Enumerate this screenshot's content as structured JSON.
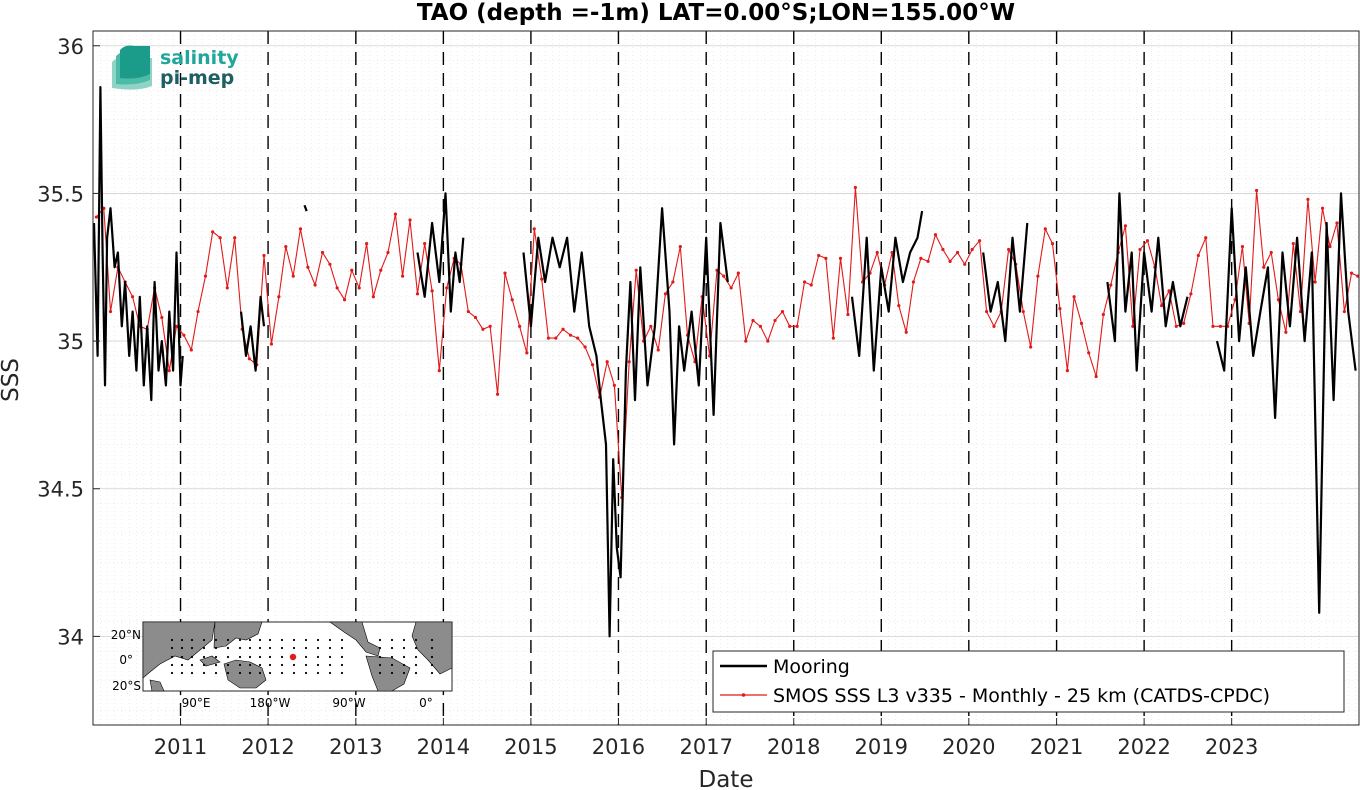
{
  "chart_data": {
    "type": "line",
    "title": "TAO (depth =-1m) LAT=0.00°S;LON=155.00°W",
    "xlabel": "Date",
    "ylabel": "SSS",
    "xlim": [
      "2010-01-01",
      "2024-06-15"
    ],
    "ylim": [
      33.7,
      36.05
    ],
    "y_ticks": [
      "34",
      "34.5",
      "35",
      "35.5",
      "36"
    ],
    "x_ticks": [
      "2011",
      "2012",
      "2013",
      "2014",
      "2015",
      "2016",
      "2017",
      "2018",
      "2019",
      "2020",
      "2021",
      "2022",
      "2023"
    ],
    "grid": true,
    "legend_position": "bottom-right",
    "legend": [
      "Mooring",
      "SMOS SSS L3 v335 - Monthly - 25 km (CATDS-CPDC)"
    ],
    "series": [
      {
        "name": "Mooring",
        "color": "#000000",
        "segments": [
          {
            "x": [
              "2010-01-05",
              "2010-01-20",
              "2010-02-01",
              "2010-02-10",
              "2010-02-20",
              "2010-03-01",
              "2010-03-15",
              "2010-04-01",
              "2010-04-15",
              "2010-05-01",
              "2010-05-15",
              "2010-06-01",
              "2010-06-15",
              "2010-07-01",
              "2010-07-15",
              "2010-08-01",
              "2010-08-15",
              "2010-09-01",
              "2010-09-15",
              "2010-10-01",
              "2010-10-15",
              "2010-11-01",
              "2010-11-15",
              "2010-12-01",
              "2010-12-15",
              "2011-01-01",
              "2011-01-10"
            ],
            "y": [
              35.4,
              34.95,
              35.86,
              35.3,
              34.85,
              35.35,
              35.45,
              35.25,
              35.3,
              35.05,
              35.2,
              34.95,
              35.1,
              34.9,
              35.15,
              34.85,
              35.05,
              34.8,
              35.2,
              34.9,
              35.0,
              34.85,
              35.1,
              34.9,
              35.3,
              34.85,
              34.95
            ]
          },
          {
            "x": [
              "2011-09-10",
              "2011-10-01",
              "2011-10-20",
              "2011-11-10",
              "2011-12-01",
              "2011-12-15"
            ],
            "y": [
              35.1,
              34.95,
              35.05,
              34.9,
              35.15,
              35.05
            ]
          },
          {
            "x": [
              "2012-06-01",
              "2012-06-10"
            ],
            "y": [
              35.46,
              35.44
            ]
          },
          {
            "x": [
              "2013-09-15",
              "2013-10-15",
              "2013-11-15",
              "2013-12-15",
              "2014-01-10",
              "2014-02-01",
              "2014-02-20",
              "2014-03-10",
              "2014-03-25"
            ],
            "y": [
              35.3,
              35.15,
              35.4,
              35.2,
              35.5,
              35.1,
              35.3,
              35.2,
              35.35
            ]
          },
          {
            "x": [
              "2014-12-01",
              "2015-01-01",
              "2015-02-01",
              "2015-03-01",
              "2015-04-01",
              "2015-05-01",
              "2015-06-01",
              "2015-07-01",
              "2015-08-01",
              "2015-09-01",
              "2015-10-01",
              "2015-10-20",
              "2015-11-10",
              "2015-11-25",
              "2015-12-10",
              "2015-12-25",
              "2016-01-10",
              "2016-02-01",
              "2016-02-20",
              "2016-03-10",
              "2016-04-01",
              "2016-05-01",
              "2016-06-01",
              "2016-07-01",
              "2016-08-01",
              "2016-08-20",
              "2016-09-10",
              "2016-10-01",
              "2016-11-01",
              "2016-12-01",
              "2017-01-01",
              "2017-02-01",
              "2017-03-01",
              "2017-04-01"
            ],
            "y": [
              35.3,
              35.05,
              35.35,
              35.2,
              35.35,
              35.25,
              35.35,
              35.1,
              35.3,
              35.05,
              34.95,
              34.8,
              34.65,
              34.0,
              34.6,
              34.3,
              34.2,
              34.9,
              35.2,
              34.8,
              35.25,
              34.85,
              35.05,
              35.45,
              35.1,
              34.65,
              35.05,
              34.9,
              35.1,
              34.85,
              35.35,
              34.75,
              35.4,
              35.2
            ]
          },
          {
            "x": [
              "2018-09-01",
              "2018-10-01",
              "2018-11-01",
              "2018-12-01",
              "2019-01-01",
              "2019-02-01",
              "2019-03-01",
              "2019-04-01",
              "2019-05-01",
              "2019-06-01",
              "2019-06-20"
            ],
            "y": [
              35.15,
              34.95,
              35.35,
              34.9,
              35.25,
              35.1,
              35.35,
              35.2,
              35.3,
              35.35,
              35.44
            ]
          },
          {
            "x": [
              "2020-03-01",
              "2020-04-01",
              "2020-05-01",
              "2020-06-01",
              "2020-07-01",
              "2020-08-01",
              "2020-09-01"
            ],
            "y": [
              35.3,
              35.1,
              35.2,
              35.0,
              35.35,
              35.1,
              35.4
            ]
          },
          {
            "x": [
              "2021-08-01",
              "2021-09-01",
              "2021-09-20",
              "2021-10-15",
              "2021-11-10",
              "2021-12-01",
              "2022-01-01",
              "2022-02-01",
              "2022-03-01",
              "2022-04-01",
              "2022-05-01",
              "2022-06-01",
              "2022-07-01"
            ],
            "y": [
              35.2,
              35.0,
              35.5,
              35.1,
              35.3,
              34.9,
              35.3,
              35.1,
              35.35,
              35.05,
              35.2,
              35.05,
              35.15
            ]
          },
          {
            "x": [
              "2022-11-01",
              "2022-12-01",
              "2023-01-01",
              "2023-02-01",
              "2023-03-01",
              "2023-04-01",
              "2023-05-01",
              "2023-06-01",
              "2023-07-01",
              "2023-08-01",
              "2023-09-01",
              "2023-10-01",
              "2023-11-01",
              "2023-12-01",
              "2024-01-01",
              "2024-02-01",
              "2024-03-01",
              "2024-04-01",
              "2024-05-01",
              "2024-06-01"
            ],
            "y": [
              35.0,
              34.9,
              35.45,
              35.0,
              35.25,
              34.95,
              35.1,
              35.25,
              34.74,
              35.3,
              35.05,
              35.35,
              35.0,
              35.3,
              34.08,
              35.4,
              34.8,
              35.5,
              35.1,
              34.9
            ]
          }
        ]
      },
      {
        "name": "SMOS SSS L3 v335 - Monthly - 25 km (CATDS-CPDC)",
        "color": "#e11a1a",
        "x": [
          "2010-01-15",
          "2010-02-15",
          "2010-03-15",
          "2010-04-15",
          "2010-05-15",
          "2010-06-15",
          "2010-07-15",
          "2010-08-15",
          "2010-09-15",
          "2010-10-15",
          "2010-11-15",
          "2010-12-15",
          "2011-01-15",
          "2011-02-15",
          "2011-03-15",
          "2011-04-15",
          "2011-05-15",
          "2011-06-15",
          "2011-07-15",
          "2011-08-15",
          "2011-09-15",
          "2011-10-15",
          "2011-11-15",
          "2011-12-15",
          "2012-01-15",
          "2012-02-15",
          "2012-03-15",
          "2012-04-15",
          "2012-05-15",
          "2012-06-15",
          "2012-07-15",
          "2012-08-15",
          "2012-09-15",
          "2012-10-15",
          "2012-11-15",
          "2012-12-15",
          "2013-01-15",
          "2013-02-15",
          "2013-03-15",
          "2013-04-15",
          "2013-05-15",
          "2013-06-15",
          "2013-07-15",
          "2013-08-15",
          "2013-09-15",
          "2013-10-15",
          "2013-11-15",
          "2013-12-15",
          "2014-01-15",
          "2014-02-15",
          "2014-03-15",
          "2014-04-15",
          "2014-05-15",
          "2014-06-15",
          "2014-07-15",
          "2014-08-15",
          "2014-09-15",
          "2014-10-15",
          "2014-11-15",
          "2014-12-15",
          "2015-01-15",
          "2015-02-15",
          "2015-03-15",
          "2015-04-15",
          "2015-05-15",
          "2015-06-15",
          "2015-07-15",
          "2015-08-15",
          "2015-09-15",
          "2015-10-15",
          "2015-11-15",
          "2015-12-15",
          "2016-01-15",
          "2016-02-15",
          "2016-03-15",
          "2016-04-15",
          "2016-05-15",
          "2016-06-15",
          "2016-07-15",
          "2016-08-15",
          "2016-09-15",
          "2016-10-15",
          "2016-11-15",
          "2016-12-15",
          "2017-01-15",
          "2017-02-15",
          "2017-03-15",
          "2017-04-15",
          "2017-05-15",
          "2017-06-15",
          "2017-07-15",
          "2017-08-15",
          "2017-09-15",
          "2017-10-15",
          "2017-11-15",
          "2017-12-15",
          "2018-01-15",
          "2018-02-15",
          "2018-03-15",
          "2018-04-15",
          "2018-05-15",
          "2018-06-15",
          "2018-07-15",
          "2018-08-15",
          "2018-09-15",
          "2018-10-15",
          "2018-11-15",
          "2018-12-15",
          "2019-01-15",
          "2019-02-15",
          "2019-03-15",
          "2019-04-15",
          "2019-05-15",
          "2019-06-15",
          "2019-07-15",
          "2019-08-15",
          "2019-09-15",
          "2019-10-15",
          "2019-11-15",
          "2019-12-15",
          "2020-01-15",
          "2020-02-15",
          "2020-03-15",
          "2020-04-15",
          "2020-05-15",
          "2020-06-15",
          "2020-07-15",
          "2020-08-15",
          "2020-09-15",
          "2020-10-15",
          "2020-11-15",
          "2020-12-15",
          "2021-01-15",
          "2021-02-15",
          "2021-03-15",
          "2021-04-15",
          "2021-05-15",
          "2021-06-15",
          "2021-07-15",
          "2021-08-15",
          "2021-09-15",
          "2021-10-15",
          "2021-11-15",
          "2021-12-15",
          "2022-01-15",
          "2022-02-15",
          "2022-03-15",
          "2022-04-15",
          "2022-05-15",
          "2022-06-15",
          "2022-07-15",
          "2022-08-15",
          "2022-09-15",
          "2022-10-15",
          "2022-11-15",
          "2022-12-15",
          "2023-01-15",
          "2023-02-15",
          "2023-03-15",
          "2023-04-15",
          "2023-05-15",
          "2023-06-15",
          "2023-07-15",
          "2023-08-15",
          "2023-09-15",
          "2023-10-15",
          "2023-11-15",
          "2023-12-15",
          "2024-01-15",
          "2024-02-15",
          "2024-03-15",
          "2024-04-15",
          "2024-05-15",
          "2024-06-10"
        ],
        "y": [
          35.42,
          35.45,
          35.1,
          35.25,
          35.2,
          35.15,
          35.05,
          35.04,
          35.18,
          35.08,
          34.9,
          35.05,
          35.02,
          34.97,
          35.1,
          35.22,
          35.37,
          35.35,
          35.18,
          35.35,
          35.04,
          34.94,
          34.92,
          35.29,
          34.99,
          35.15,
          35.32,
          35.22,
          35.38,
          35.25,
          35.19,
          35.3,
          35.26,
          35.18,
          35.14,
          35.24,
          35.18,
          35.33,
          35.15,
          35.24,
          35.3,
          35.43,
          35.22,
          35.41,
          35.16,
          35.33,
          35.17,
          34.9,
          35.18,
          35.28,
          35.26,
          35.1,
          35.08,
          35.04,
          35.05,
          34.82,
          35.23,
          35.14,
          35.05,
          34.96,
          35.38,
          35.21,
          35.01,
          35.01,
          35.04,
          35.02,
          35.01,
          34.98,
          34.92,
          34.81,
          34.93,
          34.85,
          34.47,
          34.93,
          35.24,
          35.0,
          35.05,
          34.97,
          35.16,
          35.2,
          35.32,
          35.02,
          34.93,
          35.15,
          34.95,
          35.24,
          35.22,
          35.18,
          35.23,
          35.0,
          35.07,
          35.05,
          35.0,
          35.07,
          35.1,
          35.05,
          35.05,
          35.2,
          35.19,
          35.29,
          35.28,
          35.01,
          35.28,
          35.09,
          35.52,
          35.2,
          35.23,
          35.3,
          35.19,
          35.3,
          35.12,
          35.03,
          35.2,
          35.28,
          35.27,
          35.36,
          35.31,
          35.27,
          35.3,
          35.26,
          35.31,
          35.34,
          35.1,
          35.05,
          35.1,
          35.31,
          35.26,
          35.1,
          34.98,
          35.22,
          35.38,
          35.33,
          35.11,
          34.9,
          35.15,
          35.06,
          34.96,
          34.88,
          35.09,
          35.19,
          35.3,
          35.39,
          35.05,
          35.31,
          35.34,
          35.25,
          35.12,
          35.17,
          35.05,
          35.06,
          35.16,
          35.29,
          35.35,
          35.05,
          35.05,
          35.05,
          35.14,
          35.32,
          35.06,
          35.51,
          35.25,
          35.3,
          35.14,
          35.03,
          35.33,
          35.1,
          35.48,
          35.2,
          35.45,
          35.32,
          35.4,
          35.1,
          35.23,
          35.22
        ]
      }
    ],
    "logo": {
      "line1": "salinity",
      "line2": "pi-mep"
    },
    "inset_map": {
      "y_ticks": [
        "20°N",
        "0°",
        "20°S"
      ],
      "x_ticks": [
        "90°E",
        "180°W",
        "90°W",
        "0°"
      ]
    }
  }
}
